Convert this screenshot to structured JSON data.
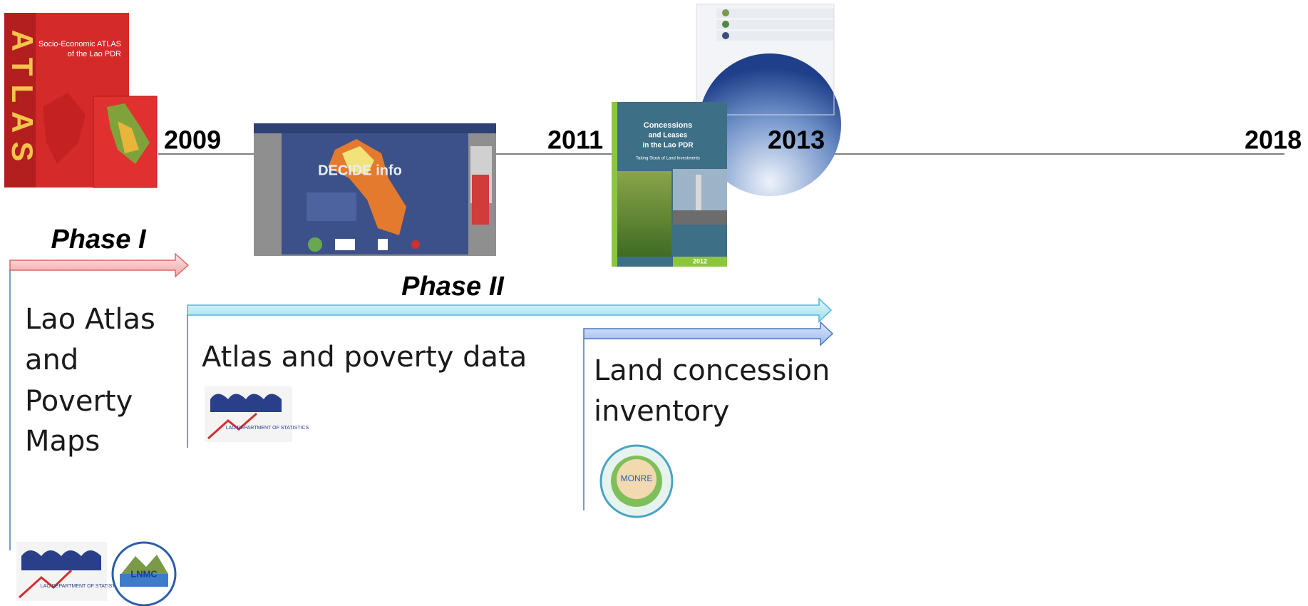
{
  "timeline": {
    "years": [
      "2009",
      "2011",
      "2013",
      "2018"
    ]
  },
  "phases": [
    {
      "label": "Phase I",
      "tracks": [
        {
          "lines": [
            "Lao Atlas",
            "and",
            "Poverty",
            "Maps"
          ]
        }
      ]
    },
    {
      "label": "Phase II",
      "tracks": [
        {
          "lines": [
            "Atlas and poverty data"
          ]
        },
        {
          "lines": [
            "Land concession",
            "inventory"
          ]
        }
      ]
    }
  ],
  "images": {
    "atlas_cover": {
      "title": "ATLAS",
      "subtitle": [
        "Socio-Economic ATLAS",
        "of the Lao PDR"
      ]
    },
    "decide_screenshot": {
      "title": "DECIDE info"
    },
    "concessions_cover": {
      "title": [
        "Concessions",
        "and Leases",
        "in the Lao PDR"
      ],
      "subtitle": "Taking Stock of Land Investments",
      "year": "2012"
    },
    "statistics_logo": {
      "label": "LAO DEPARTMENT OF STATISTICS"
    },
    "lnmc_logo": {
      "label": "LNMC"
    },
    "monre_logo": {
      "label": "MONRE"
    }
  }
}
